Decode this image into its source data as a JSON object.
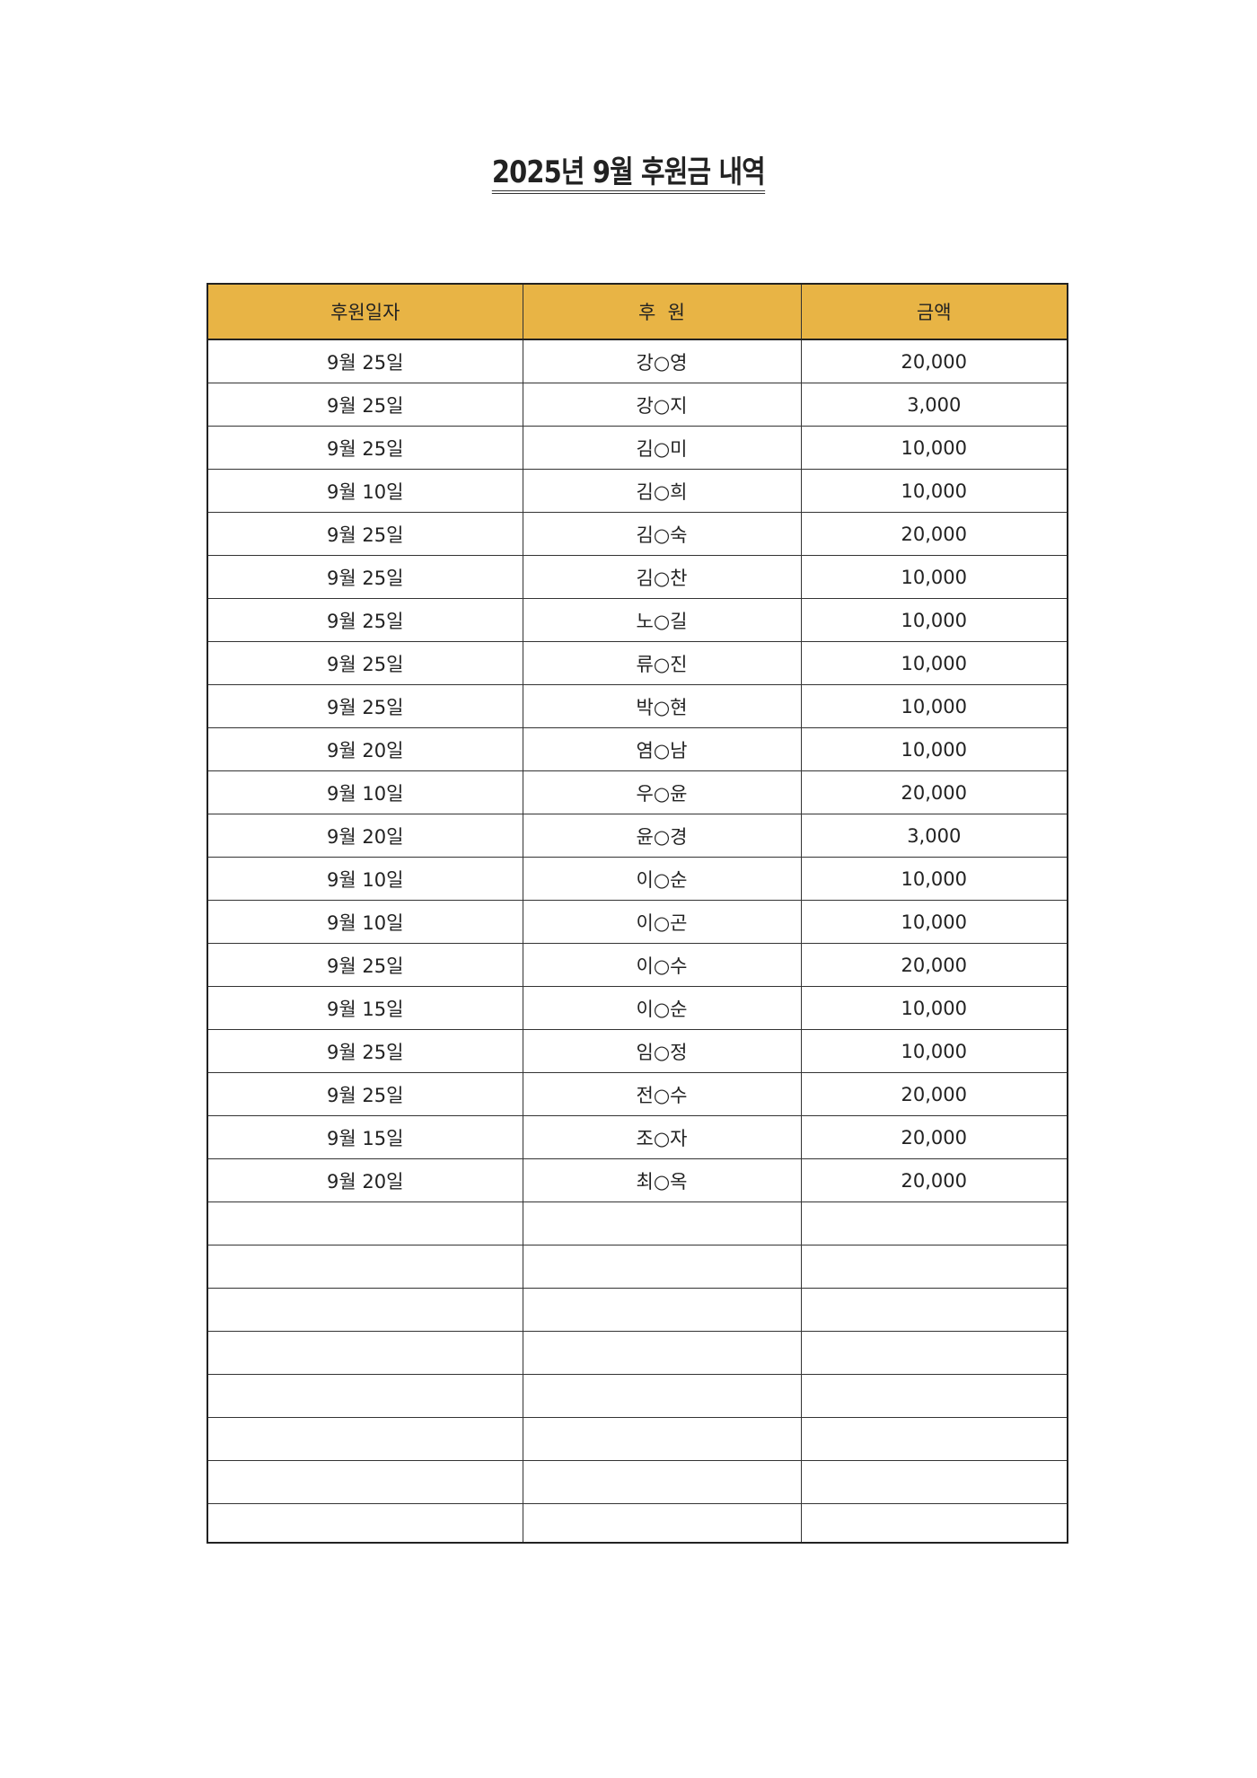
{
  "title": "2025년 9월 후원금 내역",
  "table": {
    "headers": [
      "후원일자",
      "후  원",
      "금액"
    ],
    "header_color": "#e8b445",
    "rows": [
      {
        "date": "9월 25일",
        "donor": "강○영",
        "amount": "20,000"
      },
      {
        "date": "9월 25일",
        "donor": "강○지",
        "amount": "3,000"
      },
      {
        "date": "9월 25일",
        "donor": "김○미",
        "amount": "10,000"
      },
      {
        "date": "9월 10일",
        "donor": "김○희",
        "amount": "10,000"
      },
      {
        "date": "9월 25일",
        "donor": "김○숙",
        "amount": "20,000"
      },
      {
        "date": "9월 25일",
        "donor": "김○찬",
        "amount": "10,000"
      },
      {
        "date": "9월 25일",
        "donor": "노○길",
        "amount": "10,000"
      },
      {
        "date": "9월 25일",
        "donor": "류○진",
        "amount": "10,000"
      },
      {
        "date": "9월 25일",
        "donor": "박○현",
        "amount": "10,000"
      },
      {
        "date": "9월 20일",
        "donor": "염○남",
        "amount": "10,000"
      },
      {
        "date": "9월 10일",
        "donor": "우○윤",
        "amount": "20,000"
      },
      {
        "date": "9월 20일",
        "donor": "윤○경",
        "amount": "3,000"
      },
      {
        "date": "9월 10일",
        "donor": "이○순",
        "amount": "10,000"
      },
      {
        "date": "9월 10일",
        "donor": "이○곤",
        "amount": "10,000"
      },
      {
        "date": "9월 25일",
        "donor": "이○수",
        "amount": "20,000"
      },
      {
        "date": "9월 15일",
        "donor": "이○순",
        "amount": "10,000"
      },
      {
        "date": "9월 25일",
        "donor": "임○정",
        "amount": "10,000"
      },
      {
        "date": "9월 25일",
        "donor": "전○수",
        "amount": "20,000"
      },
      {
        "date": "9월 15일",
        "donor": "조○자",
        "amount": "20,000"
      },
      {
        "date": "9월 20일",
        "donor": "최○옥",
        "amount": "20,000"
      }
    ]
  }
}
